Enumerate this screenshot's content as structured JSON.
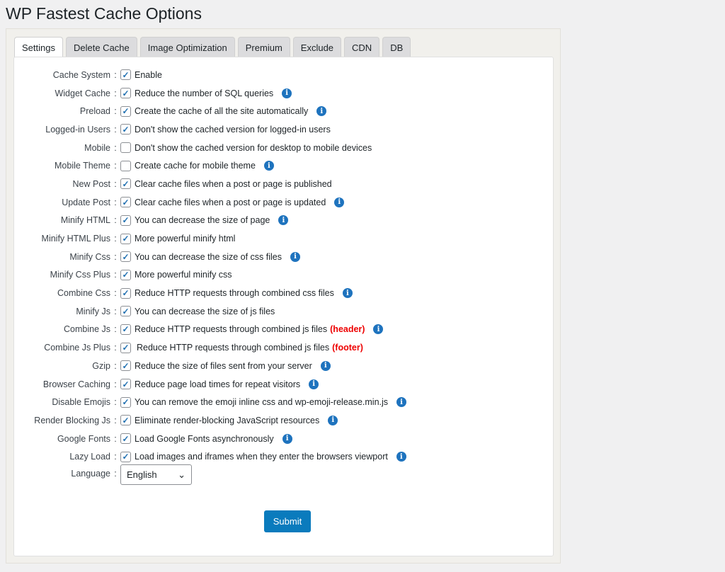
{
  "title": "WP Fastest Cache Options",
  "tabs": [
    "Settings",
    "Delete Cache",
    "Image Optimization",
    "Premium",
    "Exclude",
    "CDN",
    "DB"
  ],
  "active_tab": "Settings",
  "options": [
    {
      "label": "Cache System",
      "text": "Enable",
      "checked": true,
      "info": false
    },
    {
      "label": "Widget Cache",
      "text": "Reduce the number of SQL queries",
      "checked": true,
      "info": true
    },
    {
      "label": "Preload",
      "text": "Create the cache of all the site automatically",
      "checked": true,
      "info": true
    },
    {
      "label": "Logged-in Users",
      "text": "Don't show the cached version for logged-in users",
      "checked": true,
      "info": false
    },
    {
      "label": "Mobile",
      "text": "Don't show the cached version for desktop to mobile devices",
      "checked": false,
      "info": false
    },
    {
      "label": "Mobile Theme",
      "text": "Create cache for mobile theme",
      "checked": false,
      "info": true
    },
    {
      "label": "New Post",
      "text": "Clear cache files when a post or page is published",
      "checked": true,
      "info": false
    },
    {
      "label": "Update Post",
      "text": "Clear cache files when a post or page is updated",
      "checked": true,
      "info": true
    },
    {
      "label": "Minify HTML",
      "text": "You can decrease the size of page",
      "checked": true,
      "info": true
    },
    {
      "label": "Minify HTML Plus",
      "text": "More powerful minify html",
      "checked": true,
      "info": false
    },
    {
      "label": "Minify Css",
      "text": "You can decrease the size of css files",
      "checked": true,
      "info": true
    },
    {
      "label": "Minify Css Plus",
      "text": "More powerful minify css",
      "checked": true,
      "info": false
    },
    {
      "label": "Combine Css",
      "text": "Reduce HTTP requests through combined css files",
      "checked": true,
      "info": true
    },
    {
      "label": "Minify Js",
      "text": "You can decrease the size of js files",
      "checked": true,
      "info": false
    },
    {
      "label": "Combine Js",
      "text": "Reduce HTTP requests through combined js files",
      "note": "(header)",
      "checked": true,
      "info": true
    },
    {
      "label": "Combine Js Plus",
      "text": "Reduce HTTP requests through combined js files",
      "note": "(footer)",
      "checked": true,
      "info": false
    },
    {
      "label": "Gzip",
      "text": "Reduce the size of files sent from your server",
      "checked": true,
      "info": true
    },
    {
      "label": "Browser Caching",
      "text": "Reduce page load times for repeat visitors",
      "checked": true,
      "info": true
    },
    {
      "label": "Disable Emojis",
      "text": "You can remove the emoji inline css and wp-emoji-release.min.js",
      "checked": true,
      "info": true
    },
    {
      "label": "Render Blocking Js",
      "text": "Eliminate render-blocking JavaScript resources",
      "checked": true,
      "info": true
    },
    {
      "label": "Google Fonts",
      "text": "Load Google Fonts asynchronously",
      "checked": true,
      "info": true
    },
    {
      "label": "Lazy Load",
      "text": "Load images and iframes when they enter the browsers viewport",
      "checked": true,
      "info": true
    }
  ],
  "language": {
    "label": "Language",
    "value": "English"
  },
  "submit_label": "Submit",
  "colors": {
    "accent": "#0a7bbd",
    "info": "#1e73be",
    "note": "#ee0000"
  }
}
